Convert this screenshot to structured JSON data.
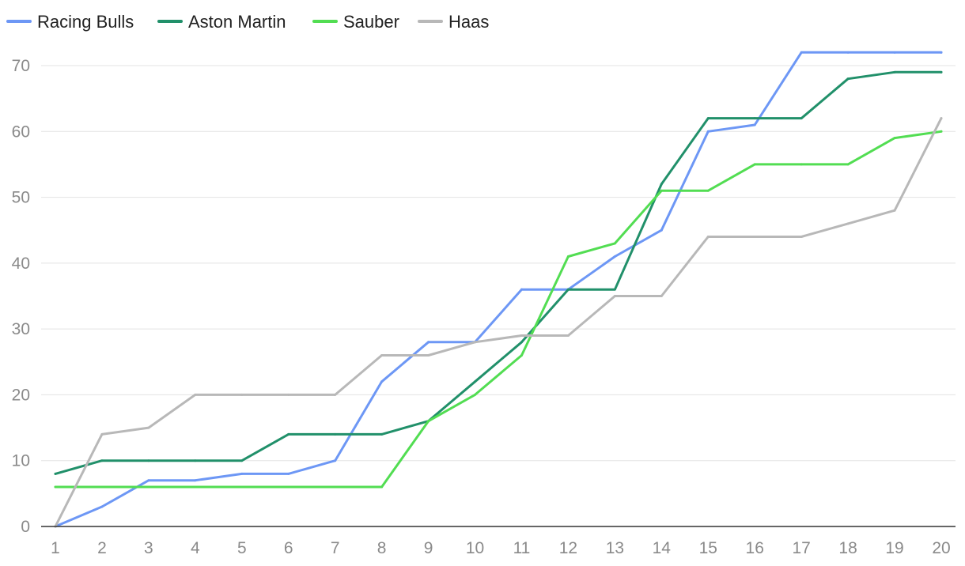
{
  "chart_data": {
    "type": "line",
    "title": "",
    "xlabel": "",
    "ylabel": "",
    "x": [
      1,
      2,
      3,
      4,
      5,
      6,
      7,
      8,
      9,
      10,
      11,
      12,
      13,
      14,
      15,
      16,
      17,
      18,
      19,
      20
    ],
    "ylim": [
      0,
      72
    ],
    "yticks": [
      0,
      10,
      20,
      30,
      40,
      50,
      60,
      70
    ],
    "grid": true,
    "legend_position": "top-left",
    "series": [
      {
        "name": "Racing Bulls",
        "color": "#6d97f5",
        "values": [
          0,
          3,
          7,
          7,
          8,
          8,
          10,
          22,
          28,
          28,
          36,
          36,
          41,
          45,
          60,
          61,
          72,
          72,
          72,
          72
        ]
      },
      {
        "name": "Aston Martin",
        "color": "#21906a",
        "values": [
          8,
          10,
          10,
          10,
          10,
          14,
          14,
          14,
          16,
          22,
          28,
          36,
          36,
          52,
          62,
          62,
          62,
          68,
          69,
          69
        ]
      },
      {
        "name": "Sauber",
        "color": "#52dd52",
        "values": [
          6,
          6,
          6,
          6,
          6,
          6,
          6,
          6,
          16,
          20,
          26,
          41,
          43,
          51,
          51,
          55,
          55,
          55,
          59,
          60
        ]
      },
      {
        "name": "Haas",
        "color": "#b8b8b8",
        "values": [
          0,
          14,
          15,
          20,
          20,
          20,
          20,
          26,
          26,
          28,
          29,
          29,
          35,
          35,
          44,
          44,
          44,
          46,
          48,
          62
        ]
      }
    ]
  }
}
